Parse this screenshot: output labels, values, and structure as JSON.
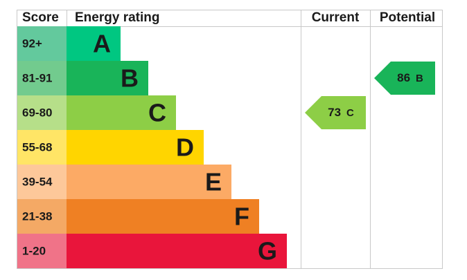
{
  "header": {
    "score": "Score",
    "rating": "Energy rating",
    "current": "Current",
    "potential": "Potential"
  },
  "bands": [
    {
      "score": "92+",
      "letter": "A",
      "color": "#00c781",
      "light": "#63c99d"
    },
    {
      "score": "81-91",
      "letter": "B",
      "color": "#19b459",
      "light": "#72cb8e"
    },
    {
      "score": "69-80",
      "letter": "C",
      "color": "#8dce46",
      "light": "#b6df89"
    },
    {
      "score": "55-68",
      "letter": "D",
      "color": "#ffd500",
      "light": "#ffe566"
    },
    {
      "score": "39-54",
      "letter": "E",
      "color": "#fcaa65",
      "light": "#fdc89a"
    },
    {
      "score": "21-38",
      "letter": "F",
      "color": "#ef8023",
      "light": "#f4a965"
    },
    {
      "score": "1-20",
      "letter": "G",
      "color": "#e9153b",
      "light": "#f07388"
    }
  ],
  "current": {
    "value": 73,
    "band": "C"
  },
  "potential": {
    "value": 86,
    "band": "B"
  }
}
